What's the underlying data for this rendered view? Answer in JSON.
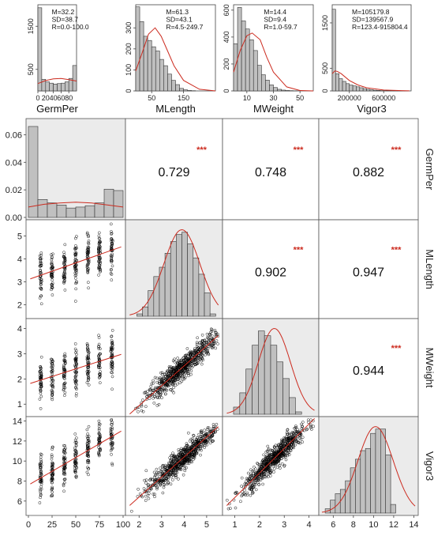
{
  "chart_data": [
    {
      "type": "bar",
      "panel": "top-histograms",
      "variables": [
        {
          "name": "GermPer",
          "stats": [
            "M=32.2",
            "SD=38.7",
            "R=0.0-100.0"
          ],
          "x_ticks": [
            "0",
            "20",
            "40",
            "60",
            "80"
          ],
          "x_tick_values": [
            0,
            20,
            40,
            60,
            80
          ],
          "y_ticks": [
            "500",
            "1500"
          ],
          "y_tick_values": [
            500,
            1500
          ],
          "xlim": [
            0,
            100
          ],
          "ylim": [
            0,
            2000
          ],
          "bin_width": 10,
          "bin_start": 0,
          "counts": [
            1930,
            270,
            210,
            180,
            160,
            170,
            180,
            210,
            290,
            590
          ],
          "curve_x": [
            0,
            20,
            40,
            60,
            80,
            100
          ],
          "curve_y": [
            170,
            240,
            280,
            290,
            260,
            230
          ]
        },
        {
          "name": "MLength",
          "stats": [
            "M=61.3",
            "SD=43.1",
            "R=4.5-249.7"
          ],
          "x_ticks": [
            "50",
            "150"
          ],
          "x_tick_values": [
            50,
            150
          ],
          "y_ticks": [
            "0",
            "100",
            "200",
            "300"
          ],
          "y_tick_values": [
            0,
            100,
            200,
            300
          ],
          "xlim": [
            0,
            250
          ],
          "ylim": [
            0,
            410
          ],
          "bin_width": 12.5,
          "bin_start": 0,
          "counts": [
            400,
            330,
            260,
            240,
            210,
            190,
            150,
            120,
            80,
            50,
            30,
            12,
            5,
            2,
            1,
            0,
            0,
            0,
            0,
            0
          ],
          "curve_x": [
            0,
            20,
            40,
            61,
            80,
            100,
            120,
            150,
            200,
            250
          ],
          "curve_y": [
            95,
            180,
            270,
            300,
            260,
            190,
            120,
            50,
            8,
            0
          ]
        },
        {
          "name": "MWeight",
          "stats": [
            "M=14.4",
            "SD=9.4",
            "R=1.0-59.7"
          ],
          "x_ticks": [
            "10",
            "30",
            "50"
          ],
          "x_tick_values": [
            10,
            30,
            50
          ],
          "y_ticks": [
            "0",
            "200",
            "400",
            "600"
          ],
          "y_tick_values": [
            0,
            200,
            400,
            600
          ],
          "xlim": [
            0,
            60
          ],
          "ylim": [
            0,
            640
          ],
          "bin_width": 3,
          "bin_start": 0,
          "counts": [
            350,
            620,
            520,
            460,
            380,
            300,
            190,
            120,
            80,
            45,
            25,
            12,
            6,
            3,
            2,
            1,
            0,
            0,
            0,
            0
          ],
          "curve_x": [
            0,
            5,
            10,
            14,
            20,
            25,
            30,
            40,
            50,
            60
          ],
          "curve_y": [
            140,
            300,
            410,
            430,
            380,
            250,
            140,
            30,
            3,
            0
          ]
        },
        {
          "name": "Vigor3",
          "stats": [
            "M=105179.8",
            "SD=139567.9",
            "R=123.4-915804.4"
          ],
          "x_ticks": [
            "200000",
            "600000"
          ],
          "x_tick_values": [
            200000,
            600000
          ],
          "y_ticks": [
            "0",
            "500",
            "1500"
          ],
          "y_tick_values": [
            0,
            500,
            1500
          ],
          "xlim": [
            0,
            920000
          ],
          "ylim": [
            0,
            1900
          ],
          "bin_width": 40000,
          "bin_start": 0,
          "counts": [
            1800,
            380,
            270,
            210,
            160,
            130,
            110,
            90,
            70,
            50,
            35,
            25,
            15,
            10,
            6,
            4,
            3,
            2,
            1,
            1,
            1,
            1,
            0
          ],
          "curve_x": [
            0,
            30000,
            60000,
            105000,
            200000,
            300000,
            400000,
            600000,
            900000
          ],
          "curve_y": [
            380,
            440,
            430,
            380,
            230,
            130,
            70,
            20,
            2
          ]
        }
      ]
    },
    {
      "type": "scatter",
      "panel": "pairs-matrix",
      "variables": [
        "GermPer",
        "MLength",
        "MWeight",
        "Vigor3"
      ],
      "correlations": [
        {
          "row": 0,
          "col": 1,
          "r": "0.729",
          "stars": "***"
        },
        {
          "row": 0,
          "col": 2,
          "r": "0.748",
          "stars": "***"
        },
        {
          "row": 0,
          "col": 3,
          "r": "0.882",
          "stars": "***"
        },
        {
          "row": 1,
          "col": 2,
          "r": "0.902",
          "stars": "***"
        },
        {
          "row": 1,
          "col": 3,
          "r": "0.947",
          "stars": "***"
        },
        {
          "row": 2,
          "col": 3,
          "r": "0.944",
          "stars": "***"
        }
      ],
      "ranges": {
        "GermPer": [
          0,
          100
        ],
        "MLength": [
          1.5,
          5.6
        ],
        "MWeight": [
          0.6,
          4.3
        ],
        "Vigor3": [
          4.8,
          14.2
        ]
      },
      "x_axis": {
        "GermPer": {
          "ticks": [
            "0",
            "25",
            "50",
            "75",
            "100"
          ],
          "values": [
            0,
            25,
            50,
            75,
            100
          ]
        },
        "MLength": {
          "ticks": [
            "2",
            "3",
            "4",
            "5"
          ],
          "values": [
            2,
            3,
            4,
            5
          ]
        },
        "MWeight": {
          "ticks": [
            "1",
            "2",
            "3",
            "4"
          ],
          "values": [
            1,
            2,
            3,
            4
          ]
        },
        "Vigor3": {
          "ticks": [
            "6",
            "8",
            "10",
            "12",
            "14"
          ],
          "values": [
            6,
            8,
            10,
            12,
            14
          ]
        }
      },
      "y_axis": {
        "GermPer": {
          "ticks": [
            "0.00",
            "0.02",
            "0.04",
            "0.06"
          ],
          "values": [
            0,
            0.02,
            0.04,
            0.06
          ],
          "range": [
            0,
            0.07
          ]
        },
        "MLength": {
          "ticks": [
            "2",
            "3",
            "4",
            "5"
          ],
          "values": [
            2,
            3,
            4,
            5
          ]
        },
        "MWeight": {
          "ticks": [
            "1",
            "2",
            "3",
            "4"
          ],
          "values": [
            1,
            2,
            3,
            4
          ]
        },
        "Vigor3": {
          "ticks": [
            "6",
            "8",
            "10",
            "12",
            "14"
          ],
          "values": [
            6,
            8,
            10,
            12,
            14
          ]
        }
      },
      "diag_hist": [
        {
          "bin_start": 0,
          "bin_width": 10,
          "values": [
            0.066,
            0.013,
            0.0105,
            0.009,
            0.0068,
            0.0075,
            0.0085,
            0.0105,
            0.0205,
            0.0195
          ],
          "curve_y": [
            0.0075,
            0.0095,
            0.0105,
            0.011,
            0.0105,
            0.009,
            0.0075
          ]
        },
        {
          "bin_start": 1.9,
          "bin_width": 0.25,
          "values": [
            0.05,
            0.2,
            0.55,
            0.85,
            1.05,
            1.35,
            1.6,
            1.75,
            1.8,
            1.55,
            1.25,
            0.9,
            0.5,
            0.05
          ]
        },
        {
          "bin_start": 0.95,
          "bin_width": 0.25,
          "values": [
            0.15,
            0.45,
            0.95,
            1.45,
            1.75,
            1.65,
            1.45,
            1.1,
            0.75,
            0.35,
            0.05
          ]
        },
        {
          "bin_start": 5.2,
          "bin_width": 0.5,
          "values": [
            0.1,
            0.3,
            0.45,
            0.55,
            0.75,
            1.05,
            1.25,
            1.45,
            1.5,
            1.85,
            1.95,
            1.95,
            1.35,
            0.2
          ]
        }
      ],
      "stats_mean": {
        "MLength": 3.9,
        "MWeight": 2.6,
        "Vigor3": 10.2
      },
      "stats_sd": {
        "MLength": 0.8,
        "MWeight": 0.65,
        "Vigor3": 1.75
      },
      "regression": {
        "1,0": {
          "slope": 0.0145,
          "intercept": 3.1
        },
        "2,0": {
          "slope": 0.012,
          "intercept": 1.8
        },
        "3,0": {
          "slope": 0.055,
          "intercept": 7.6
        },
        "2,1": {
          "slope": 0.79,
          "intercept": -0.64
        },
        "3,1": {
          "slope": 2.0,
          "intercept": 2.4
        },
        "3,2": {
          "slope": 2.45,
          "intercept": 3.9
        }
      },
      "point_color": "#000000",
      "line_color": "#cc2b1f",
      "bar_fill": "#c0c0c0",
      "diag_bg": "#ebebeb"
    }
  ]
}
